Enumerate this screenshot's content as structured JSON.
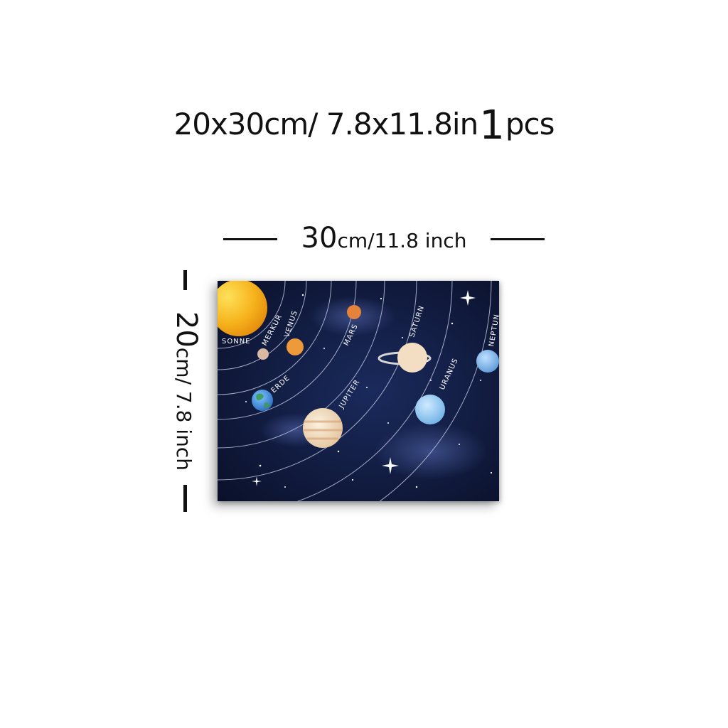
{
  "header": {
    "size_text": "20x30cm/ 7.8x11.8in",
    "quantity_number": "1",
    "quantity_unit": "pcs"
  },
  "dimensions": {
    "width_value": "30",
    "width_unit": "cm/11.8 inch",
    "height_value": "20",
    "height_unit": "cm/ 7.8 inch"
  },
  "poster": {
    "labels": {
      "sun": "SONNE",
      "mercury": "MERKUR",
      "venus": "VENUS",
      "earth": "ERDE",
      "mars": "MARS",
      "jupiter": "JUPITER",
      "saturn": "SATURN",
      "uranus": "URANUS",
      "neptune": "NEPTUN"
    },
    "colors": {
      "sky": "#0f1735",
      "sun": "#f6b21c",
      "orbit": "#c9cde8"
    }
  }
}
